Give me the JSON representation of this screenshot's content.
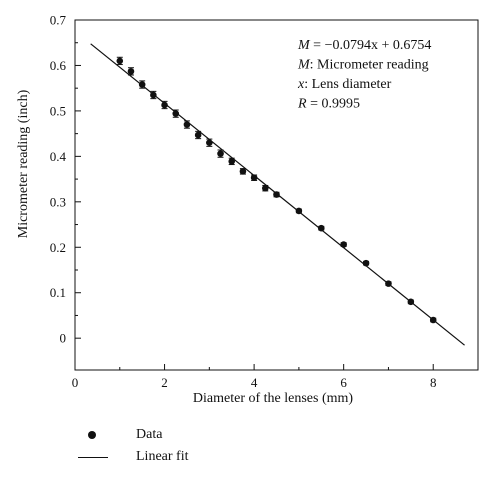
{
  "chart_data": {
    "type": "scatter",
    "xlabel": "Diameter of the lenses (mm)",
    "ylabel": "Micrometer reading (inch)",
    "xlim": [
      0,
      9.0
    ],
    "ylim": [
      -0.07,
      0.7
    ],
    "xticks": [
      0,
      2,
      4,
      6,
      8
    ],
    "yticks": [
      0,
      0.1,
      0.2,
      0.3,
      0.4,
      0.5,
      0.6,
      0.7
    ],
    "xtick_labels": [
      "0",
      "2",
      "4",
      "6",
      "8"
    ],
    "ytick_labels": [
      "0",
      "0.1",
      "0.2",
      "0.3",
      "0.4",
      "0.5",
      "0.6",
      "0.7"
    ],
    "grid": false,
    "series": [
      {
        "name": "Data",
        "x": [
          1.0,
          1.25,
          1.5,
          1.75,
          2.0,
          2.25,
          2.5,
          2.75,
          3.0,
          3.25,
          3.5,
          3.75,
          4.0,
          4.25,
          4.5,
          5.0,
          5.5,
          6.0,
          6.5,
          7.0,
          7.5,
          8.0
        ],
        "y": [
          0.61,
          0.587,
          0.558,
          0.535,
          0.513,
          0.494,
          0.47,
          0.447,
          0.43,
          0.406,
          0.389,
          0.367,
          0.353,
          0.33,
          0.316,
          0.28,
          0.242,
          0.206,
          0.165,
          0.12,
          0.08,
          0.04
        ],
        "error": [
          0.008,
          0.008,
          0.008,
          0.008,
          0.008,
          0.008,
          0.008,
          0.008,
          0.008,
          0.008,
          0.007,
          0.006,
          0.006,
          0.006,
          0.005,
          0.004,
          0.004,
          0.004,
          0.004,
          0.004,
          0.004,
          0.004
        ]
      },
      {
        "name": "Linear fit",
        "type": "line",
        "slope": -0.0794,
        "intercept": 0.6754,
        "x_range": [
          0.35,
          8.7
        ]
      }
    ],
    "annotations": [
      {
        "lead": "M",
        "text": " = −0.0794x + 0.6754"
      },
      {
        "lead": "M",
        "text": ": Micrometer reading"
      },
      {
        "lead": "x",
        "text": ": Lens diameter"
      },
      {
        "lead": "R",
        "text": " = 0.9995"
      }
    ],
    "legend": {
      "placement": "below",
      "entries": [
        {
          "label": "Data",
          "symbol": "dot"
        },
        {
          "label": "Linear fit",
          "symbol": "line"
        }
      ]
    }
  }
}
